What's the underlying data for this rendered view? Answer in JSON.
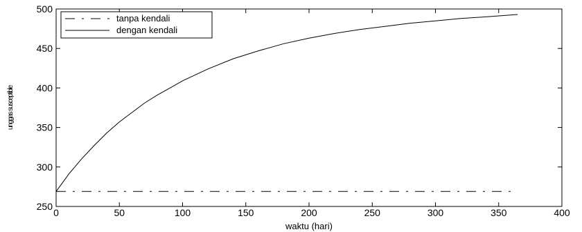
{
  "chart_data": {
    "type": "line",
    "title": "",
    "xlabel": "waktu (hari)",
    "ylabel": "unggas susceptible",
    "xlim": [
      0,
      400
    ],
    "ylim": [
      250,
      500
    ],
    "xticks": [
      "0",
      "50",
      "100",
      "150",
      "200",
      "250",
      "300",
      "350",
      "400"
    ],
    "yticks": [
      "250",
      "300",
      "350",
      "400",
      "450",
      "500"
    ],
    "grid": false,
    "legend_position": "top-left",
    "series": [
      {
        "name": "tanpa kendali",
        "style": "dashed",
        "color": "#000000",
        "x": [
          0,
          365
        ],
        "y": [
          269,
          269
        ]
      },
      {
        "name": "dengan kendali",
        "style": "solid",
        "color": "#000000",
        "x": [
          0,
          10,
          20,
          30,
          40,
          50,
          60,
          70,
          80,
          90,
          100,
          120,
          140,
          160,
          180,
          200,
          220,
          240,
          260,
          280,
          300,
          320,
          340,
          365
        ],
        "y": [
          269,
          291,
          310,
          327,
          343,
          357,
          369,
          381,
          391,
          400,
          409,
          424,
          437,
          447,
          456,
          463,
          469,
          474,
          478,
          482,
          485,
          488,
          490,
          493
        ]
      }
    ]
  }
}
